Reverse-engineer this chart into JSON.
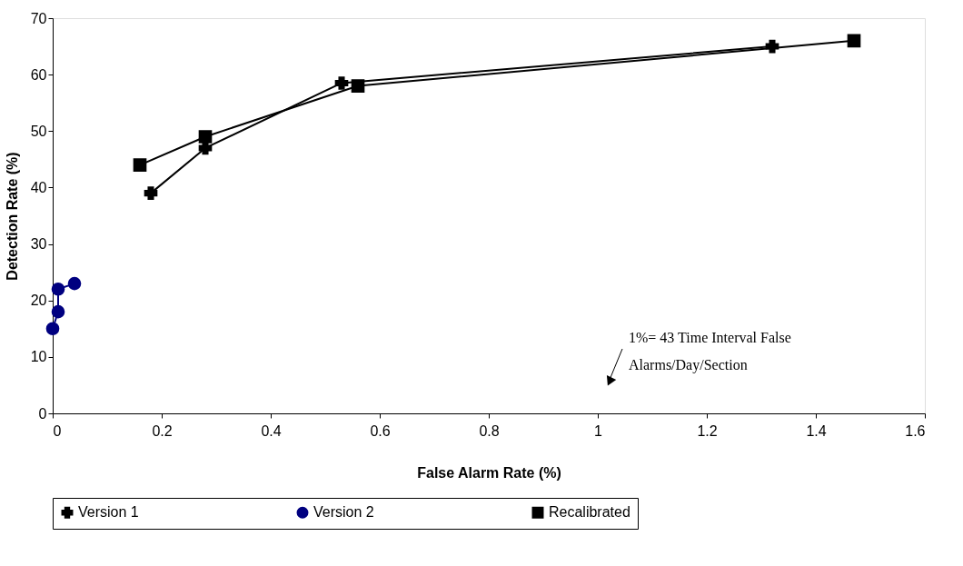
{
  "chart_data": {
    "type": "line",
    "xlabel": "False Alarm Rate (%)",
    "ylabel": "Detection Rate (%)",
    "xlim": [
      0,
      1.6
    ],
    "xticks": [
      0,
      0.2,
      0.4,
      0.6,
      0.8,
      1,
      1.2,
      1.4,
      1.6
    ],
    "ylim": [
      0,
      70
    ],
    "yticks": [
      0,
      10,
      20,
      30,
      40,
      50,
      60,
      70
    ],
    "grid": false,
    "legend": "bottom",
    "series": [
      {
        "name": "Version 1",
        "color": "#000000",
        "marker": "cross",
        "x": [
          0.18,
          0.28,
          0.53,
          1.32
        ],
        "values": [
          39,
          47,
          58.5,
          65
        ]
      },
      {
        "name": "Version 2",
        "color": "#000080",
        "marker": "circle",
        "x": [
          0,
          0.01,
          0.01,
          0.04
        ],
        "values": [
          15,
          18,
          22,
          23
        ]
      },
      {
        "name": "Recalibrated",
        "color": "#000000",
        "marker": "square",
        "x": [
          0.16,
          0.28,
          0.56,
          1.47
        ],
        "values": [
          44,
          49,
          58,
          66
        ]
      }
    ],
    "annotations": [
      "1%= 43 Time Interval False Alarms/Day/Section"
    ]
  }
}
